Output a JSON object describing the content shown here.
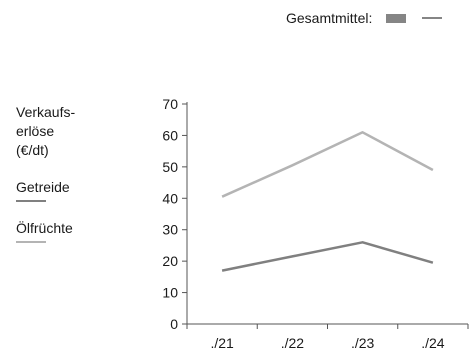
{
  "legend_top": {
    "label": "Gesamtmittel:",
    "box_color": "#858585",
    "line_color": "#858585"
  },
  "side_legend": {
    "ylabel_lines": [
      "Verkaufs-",
      "erlöse",
      "(€/dt)"
    ],
    "items": [
      {
        "label": "Getreide",
        "color": "#808080"
      },
      {
        "label": "Ölfrüchte",
        "color": "#b4b4b4"
      }
    ]
  },
  "chart_data": {
    "type": "line",
    "categories": [
      "./21",
      "./22",
      "./23",
      "./24"
    ],
    "series": [
      {
        "name": "Getreide",
        "values": [
          17,
          21.5,
          26,
          19.5
        ],
        "color": "#808080"
      },
      {
        "name": "Ölfrüchte",
        "values": [
          40.5,
          50.5,
          61,
          49
        ],
        "color": "#b4b4b4"
      }
    ],
    "ylabel": "Verkaufs-erlöse (€/dt)",
    "ylim": [
      0,
      70
    ],
    "yticks": [
      0,
      10,
      20,
      30,
      40,
      50,
      60,
      70
    ],
    "grid": false
  }
}
